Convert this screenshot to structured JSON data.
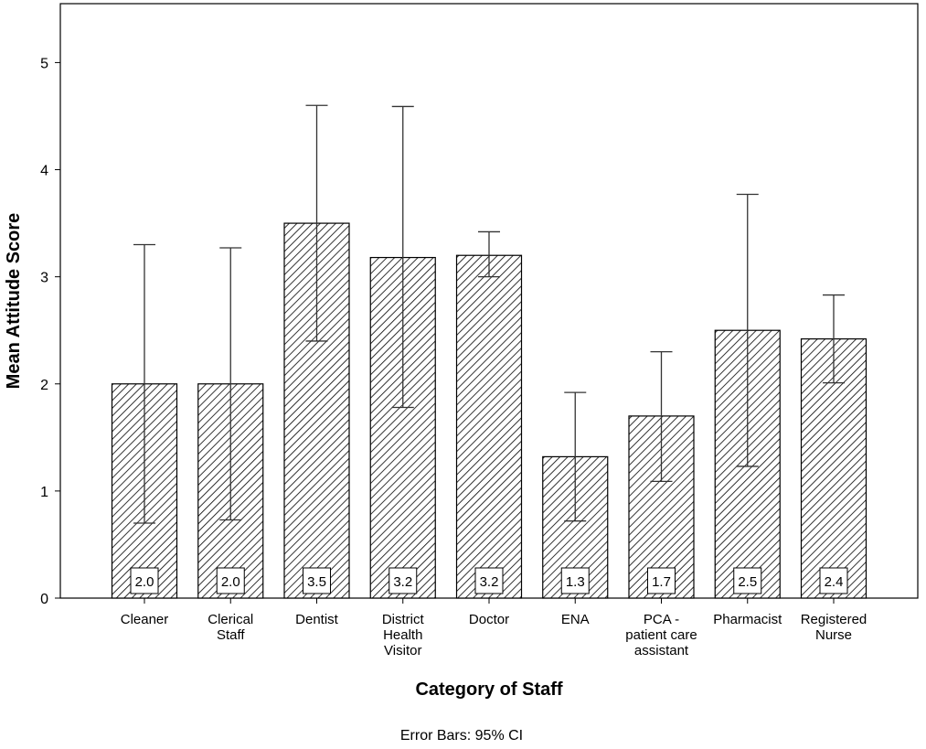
{
  "chart_data": {
    "type": "bar",
    "categories": [
      [
        "Cleaner"
      ],
      [
        "Clerical",
        "Staff"
      ],
      [
        "Dentist"
      ],
      [
        "District",
        "Health",
        "Visitor"
      ],
      [
        "Doctor"
      ],
      [
        "ENA"
      ],
      [
        "PCA -",
        "patient care",
        "assistant"
      ],
      [
        "Pharmacist"
      ],
      [
        "Registered",
        "Nurse"
      ]
    ],
    "values": [
      2.0,
      2.0,
      3.5,
      3.18,
      3.2,
      1.32,
      1.7,
      2.5,
      2.42
    ],
    "value_labels": [
      "2.0",
      "2.0",
      "3.5",
      "3.2",
      "3.2",
      "1.3",
      "1.7",
      "2.5",
      "2.4"
    ],
    "ci_lower": [
      0.7,
      0.73,
      2.4,
      1.78,
      3.0,
      0.72,
      1.09,
      1.23,
      2.01
    ],
    "ci_upper": [
      3.3,
      3.27,
      4.6,
      4.59,
      3.42,
      1.92,
      2.3,
      3.77,
      2.83
    ],
    "xlabel": "Category of Staff",
    "ylabel": "Mean Attitude Score",
    "yticks": [
      0,
      1,
      2,
      3,
      4,
      5
    ],
    "ylim": [
      0,
      5.55
    ],
    "footnote": "Error Bars: 95% CI",
    "bar_fill": "hatched diagonal",
    "grid": false
  }
}
